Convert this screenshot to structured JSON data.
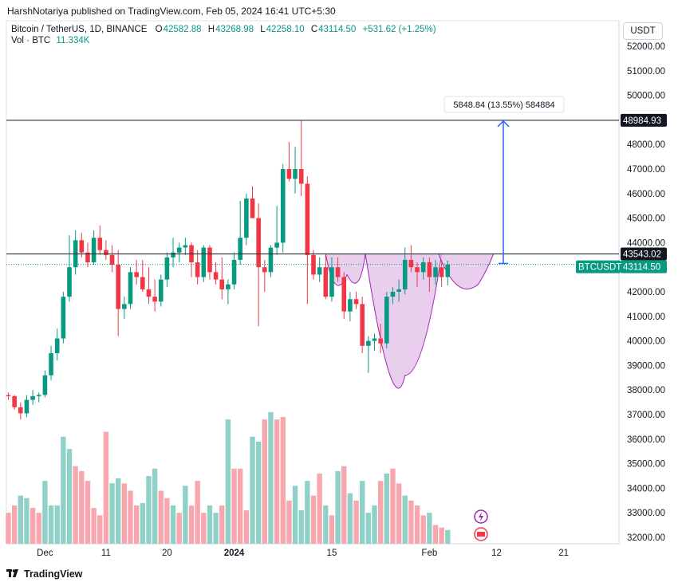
{
  "header": {
    "publisher": "HarshNotariya published on TradingView.com, Feb 05, 2024 16:41 UTC+5:30",
    "symbol": "Bitcoin / TetherUS, 1D, BINANCE",
    "ohlc": {
      "o_label": "O",
      "o_value": "42582.88",
      "h_label": "H",
      "h_value": "43268.98",
      "l_label": "L",
      "l_value": "42258.10",
      "c_label": "C",
      "c_value": "43114.50",
      "change": "+531.62 (+1.25%)"
    },
    "volume_label": "Vol · BTC",
    "volume_value": "11.334K",
    "currency": "USDT"
  },
  "footer": {
    "brand": "TradingView"
  },
  "colors": {
    "up": "#089981",
    "down": "#f23645",
    "vol_up": "#8fd1c8",
    "vol_down": "#f7a7ad",
    "pattern_fill": "#e1bee7",
    "pattern_stroke": "#9c27b0",
    "arrow": "#2962ff",
    "level_line": "#131722",
    "grid": "#f0f3fa"
  },
  "chart_data": {
    "type": "candlestick",
    "price_axis": {
      "min": 31600,
      "max": 52500,
      "ticks": [
        "52000.00",
        "51000.00",
        "50000.00",
        "49000.00",
        "48000.00",
        "47000.00",
        "46000.00",
        "45000.00",
        "44000.00",
        "43000.00",
        "42000.00",
        "41000.00",
        "40000.00",
        "39000.00",
        "38000.00",
        "37000.00",
        "36000.00",
        "35000.00",
        "34000.00",
        "33000.00",
        "32000.00"
      ]
    },
    "time_axis": {
      "labels": [
        "Dec",
        "11",
        "20",
        "2024",
        "15",
        "Feb",
        "12",
        "21"
      ],
      "bold": [
        "2024"
      ]
    },
    "price_labels": {
      "top_level": "48984.93",
      "neck_level": "43543.02",
      "symbol_tag": "BTCUSDT",
      "last_price": "43114.50"
    },
    "levels": [
      48984.93,
      43543.02
    ],
    "measure_label": "5848.84 (13.55%) 584884",
    "candles": [
      [
        37800,
        37900,
        37600,
        37750
      ],
      [
        37750,
        37800,
        37200,
        37300
      ],
      [
        37300,
        37500,
        36800,
        37050
      ],
      [
        37050,
        37800,
        36900,
        37600
      ],
      [
        37600,
        38000,
        37400,
        37750
      ],
      [
        37750,
        37900,
        37500,
        37800
      ],
      [
        37800,
        38800,
        37700,
        38600
      ],
      [
        38600,
        39800,
        38400,
        39500
      ],
      [
        39500,
        40500,
        39200,
        40100
      ],
      [
        40100,
        42000,
        39900,
        41800
      ],
      [
        41800,
        44300,
        41600,
        43000
      ],
      [
        43000,
        44500,
        42700,
        44100
      ],
      [
        44100,
        44400,
        43400,
        43600
      ],
      [
        43600,
        44000,
        43000,
        43200
      ],
      [
        43200,
        44500,
        43100,
        44200
      ],
      [
        44200,
        44700,
        43500,
        43700
      ],
      [
        43700,
        44100,
        43300,
        43500
      ],
      [
        43500,
        43900,
        42800,
        43100
      ],
      [
        43100,
        43700,
        40200,
        41300
      ],
      [
        41300,
        41800,
        40900,
        41500
      ],
      [
        41500,
        43000,
        41300,
        42800
      ],
      [
        42800,
        43300,
        42300,
        42600
      ],
      [
        42600,
        43300,
        42000,
        42100
      ],
      [
        42100,
        43000,
        41500,
        41800
      ],
      [
        41800,
        42500,
        41200,
        41600
      ],
      [
        41600,
        42700,
        41400,
        42500
      ],
      [
        42500,
        43600,
        42200,
        43400
      ],
      [
        43400,
        44200,
        43000,
        43600
      ],
      [
        43600,
        44000,
        43200,
        43800
      ],
      [
        43800,
        44200,
        43500,
        43900
      ],
      [
        43900,
        44000,
        42600,
        43200
      ],
      [
        43200,
        43700,
        42300,
        42600
      ],
      [
        42600,
        43900,
        42400,
        43800
      ],
      [
        43800,
        43900,
        42500,
        42800
      ],
      [
        42800,
        43200,
        42300,
        42500
      ],
      [
        42500,
        43400,
        41700,
        42100
      ],
      [
        42100,
        42500,
        41500,
        42300
      ],
      [
        42300,
        43600,
        42100,
        43300
      ],
      [
        43300,
        45700,
        43100,
        44200
      ],
      [
        44200,
        46000,
        43900,
        45800
      ],
      [
        45800,
        46300,
        45000,
        45000
      ],
      [
        45000,
        45600,
        40600,
        43000
      ],
      [
        43000,
        43300,
        42000,
        42800
      ],
      [
        42800,
        43900,
        42600,
        43800
      ],
      [
        43800,
        45500,
        43500,
        44000
      ],
      [
        44000,
        47200,
        43600,
        47000
      ],
      [
        47000,
        48100,
        46500,
        46600
      ],
      [
        46600,
        47900,
        46000,
        47000
      ],
      [
        47000,
        48985,
        45900,
        46400
      ],
      [
        46400,
        46700,
        41500,
        43500
      ],
      [
        43500,
        43700,
        42500,
        42700
      ],
      [
        42700,
        43400,
        42400,
        43000
      ],
      [
        43000,
        43500,
        41700,
        41800
      ],
      [
        41800,
        43400,
        41600,
        43000
      ],
      [
        43000,
        43400,
        42400,
        42600
      ],
      [
        42600,
        42800,
        40900,
        41200
      ],
      [
        41200,
        42000,
        40800,
        41700
      ],
      [
        41700,
        42000,
        41300,
        41500
      ],
      [
        41500,
        41800,
        39500,
        39800
      ],
      [
        39800,
        40200,
        38700,
        40000
      ],
      [
        40000,
        40300,
        39600,
        40100
      ],
      [
        40100,
        40700,
        39500,
        39900
      ],
      [
        39900,
        42000,
        39700,
        41800
      ],
      [
        41800,
        42200,
        41500,
        42000
      ],
      [
        42000,
        42500,
        41600,
        42100
      ],
      [
        42100,
        43800,
        41900,
        43300
      ],
      [
        43300,
        43900,
        42800,
        43000
      ],
      [
        43000,
        43200,
        42200,
        42800
      ],
      [
        42800,
        43400,
        42500,
        43200
      ],
      [
        43200,
        43400,
        42000,
        42600
      ],
      [
        42600,
        43300,
        42300,
        43000
      ],
      [
        43000,
        43300,
        42200,
        42600
      ],
      [
        42600,
        43270,
        42260,
        43110
      ]
    ],
    "volumes": [
      [
        33000,
        0
      ],
      [
        33300,
        0
      ],
      [
        33700,
        1
      ],
      [
        33600,
        1
      ],
      [
        33200,
        0
      ],
      [
        33000,
        0
      ],
      [
        34300,
        1
      ],
      [
        33300,
        1
      ],
      [
        33300,
        1
      ],
      [
        36100,
        1
      ],
      [
        35600,
        1
      ],
      [
        34900,
        0
      ],
      [
        34700,
        0
      ],
      [
        34300,
        0
      ],
      [
        33200,
        0
      ],
      [
        32900,
        0
      ],
      [
        36300,
        0
      ],
      [
        34200,
        1
      ],
      [
        34400,
        1
      ],
      [
        34200,
        0
      ],
      [
        33900,
        0
      ],
      [
        33300,
        0
      ],
      [
        33400,
        1
      ],
      [
        34500,
        1
      ],
      [
        34800,
        1
      ],
      [
        33900,
        0
      ],
      [
        33600,
        0
      ],
      [
        33300,
        1
      ],
      [
        33000,
        0
      ],
      [
        34100,
        1
      ],
      [
        33300,
        0
      ],
      [
        34300,
        0
      ],
      [
        33000,
        0
      ],
      [
        33300,
        1
      ],
      [
        33000,
        1
      ],
      [
        33300,
        0
      ],
      [
        36800,
        1
      ],
      [
        34800,
        0
      ],
      [
        34800,
        0
      ],
      [
        33100,
        0
      ],
      [
        36100,
        1
      ],
      [
        35900,
        1
      ],
      [
        36800,
        0
      ],
      [
        37100,
        1
      ],
      [
        36800,
        0
      ],
      [
        36900,
        0
      ],
      [
        33500,
        0
      ],
      [
        34100,
        1
      ],
      [
        33100,
        1
      ],
      [
        34300,
        1
      ],
      [
        33700,
        0
      ],
      [
        34600,
        0
      ],
      [
        33300,
        1
      ],
      [
        32900,
        0
      ],
      [
        34700,
        1
      ],
      [
        34900,
        0
      ],
      [
        33800,
        1
      ],
      [
        33500,
        0
      ],
      [
        34300,
        1
      ],
      [
        33000,
        1
      ],
      [
        33300,
        1
      ],
      [
        34300,
        0
      ],
      [
        34600,
        1
      ],
      [
        34800,
        0
      ],
      [
        34200,
        0
      ],
      [
        33700,
        1
      ],
      [
        33500,
        0
      ],
      [
        33300,
        0
      ],
      [
        32900,
        0
      ],
      [
        33000,
        1
      ],
      [
        32500,
        0
      ],
      [
        32400,
        0
      ],
      [
        32300,
        1
      ]
    ],
    "cup_handle": {
      "left_rim": 43543.02,
      "right_rim": 43543.02,
      "bottom": 38600
    }
  }
}
